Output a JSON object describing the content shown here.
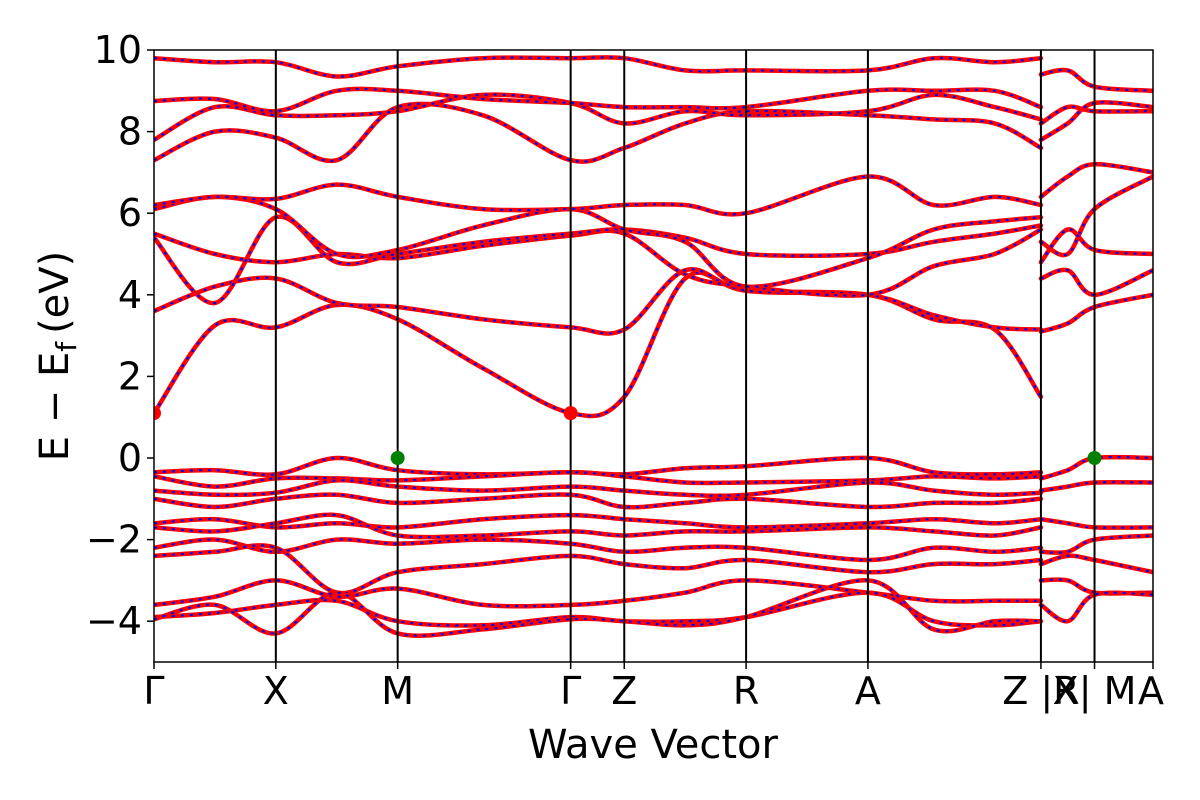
{
  "chart_data": {
    "type": "line",
    "title": "",
    "xlabel": "Wave Vector",
    "ylabel": "E − E",
    "ylabel_subscript": "f",
    "ylabel_unit": "(eV)",
    "ylim": [
      -5,
      10
    ],
    "yticks": [
      -4,
      -2,
      0,
      2,
      4,
      6,
      8,
      10
    ],
    "ytick_labels": [
      "−4",
      "−2",
      "0",
      "2",
      "4",
      "6",
      "8",
      "10"
    ],
    "grid": false,
    "legend": "none",
    "xlim": [
      0,
      8.2
    ],
    "kpath": [
      {
        "label": "Γ",
        "x": 0.0
      },
      {
        "label": "X",
        "x": 1.0
      },
      {
        "label": "M",
        "x": 2.0
      },
      {
        "label": "Γ",
        "x": 3.42
      },
      {
        "label": "Z",
        "x": 3.86
      },
      {
        "label": "R",
        "x": 4.86
      },
      {
        "label": "A",
        "x": 5.86
      },
      {
        "label": "Z |R",
        "x": 7.28
      },
      {
        "label": "X| M",
        "x": 7.72
      },
      {
        "label": "A",
        "x": 8.2
      }
    ],
    "colors": {
      "band_red": "#ff0000",
      "band_blue": "#0000ff",
      "cbm": "#ff0000",
      "vbm": "#008000",
      "axis": "#000000"
    },
    "series": [
      {
        "values": [
          1.1,
          3.25,
          3.2,
          3.75,
          3.4,
          2.2,
          1.1,
          1.5,
          4.4,
          4.1,
          4.0,
          3.4,
          3.15,
          1.5
        ]
      },
      {
        "values": [
          3.6,
          4.2,
          4.4,
          3.8,
          3.7,
          3.4,
          3.2,
          3.15,
          4.6,
          4.1,
          4.0,
          3.5,
          3.2,
          3.15
        ]
      },
      {
        "values": [
          5.5,
          5.0,
          4.8,
          5.0,
          4.9,
          5.2,
          5.45,
          5.5,
          4.5,
          4.2,
          4.0,
          4.7,
          5.0,
          5.6
        ]
      },
      {
        "values": [
          5.4,
          3.8,
          5.9,
          4.8,
          5.0,
          5.3,
          5.5,
          5.6,
          5.4,
          5.0,
          5.0,
          5.3,
          5.5,
          5.7
        ]
      },
      {
        "values": [
          6.1,
          6.4,
          6.1,
          5.0,
          5.1,
          5.7,
          6.1,
          5.6,
          5.3,
          4.2,
          4.9,
          5.6,
          5.8,
          5.9
        ]
      },
      {
        "values": [
          6.2,
          6.4,
          6.35,
          6.7,
          6.4,
          6.1,
          6.1,
          6.2,
          6.2,
          6.0,
          6.9,
          6.2,
          6.4,
          6.2
        ]
      },
      {
        "values": [
          7.3,
          8.0,
          7.85,
          7.3,
          8.6,
          8.4,
          7.3,
          7.6,
          8.2,
          8.5,
          8.4,
          8.3,
          8.2,
          7.6
        ]
      },
      {
        "values": [
          7.8,
          8.6,
          8.4,
          8.4,
          8.5,
          8.9,
          8.7,
          8.2,
          8.5,
          8.4,
          8.5,
          8.9,
          8.6,
          8.3
        ]
      },
      {
        "values": [
          8.75,
          8.8,
          8.5,
          9.0,
          9.0,
          8.8,
          8.7,
          8.6,
          8.6,
          8.6,
          9.0,
          9.0,
          9.0,
          8.6
        ]
      },
      {
        "values": [
          9.8,
          9.7,
          9.7,
          9.35,
          9.6,
          9.8,
          9.8,
          9.8,
          9.5,
          9.5,
          9.5,
          9.8,
          9.7,
          9.8
        ]
      },
      {
        "values": [
          -0.35,
          -0.3,
          -0.4,
          0.0,
          -0.3,
          -0.4,
          -0.35,
          -0.4,
          -0.25,
          -0.2,
          0.0,
          -0.35,
          -0.4,
          -0.35
        ]
      },
      {
        "values": [
          -0.45,
          -0.7,
          -0.5,
          -0.5,
          -0.55,
          -0.45,
          -0.35,
          -0.45,
          -0.6,
          -0.6,
          -0.55,
          -0.45,
          -0.5,
          -0.45
        ]
      },
      {
        "values": [
          -0.8,
          -0.9,
          -0.85,
          -0.55,
          -0.7,
          -0.8,
          -0.7,
          -0.8,
          -0.9,
          -0.9,
          -0.6,
          -0.8,
          -0.9,
          -0.85
        ]
      },
      {
        "values": [
          -1.0,
          -1.2,
          -1.0,
          -0.9,
          -1.1,
          -1.0,
          -0.9,
          -1.2,
          -1.1,
          -1.0,
          -1.2,
          -1.1,
          -1.1,
          -1.0
        ]
      },
      {
        "values": [
          -1.6,
          -1.5,
          -1.7,
          -1.6,
          -1.7,
          -1.5,
          -1.4,
          -1.5,
          -1.6,
          -1.7,
          -1.6,
          -1.5,
          -1.6,
          -1.5
        ]
      },
      {
        "values": [
          -1.7,
          -1.8,
          -1.6,
          -1.4,
          -1.9,
          -1.9,
          -1.8,
          -1.9,
          -1.8,
          -1.8,
          -1.7,
          -1.8,
          -1.9,
          -1.7
        ]
      },
      {
        "values": [
          -2.2,
          -2.0,
          -2.3,
          -2.0,
          -2.1,
          -2.0,
          -2.1,
          -2.3,
          -2.2,
          -2.2,
          -2.5,
          -2.2,
          -2.3,
          -2.2
        ]
      },
      {
        "values": [
          -2.4,
          -2.3,
          -2.2,
          -3.3,
          -2.8,
          -2.6,
          -2.4,
          -2.6,
          -2.7,
          -2.5,
          -2.8,
          -2.6,
          -2.6,
          -2.5
        ]
      },
      {
        "values": [
          -3.6,
          -3.4,
          -3.0,
          -3.4,
          -3.2,
          -3.6,
          -3.6,
          -3.5,
          -3.3,
          -3.0,
          -3.3,
          -3.5,
          -3.5,
          -3.5
        ]
      },
      {
        "values": [
          -3.9,
          -3.8,
          -3.6,
          -3.5,
          -4.0,
          -4.1,
          -3.9,
          -4.0,
          -4.0,
          -3.9,
          -3.3,
          -4.0,
          -4.1,
          -4.0
        ]
      },
      {
        "values": [
          -3.95,
          -3.6,
          -4.3,
          -3.3,
          -4.3,
          -4.2,
          -3.95,
          -4.0,
          -4.1,
          -3.9,
          -3.0,
          -4.2,
          -4.0,
          -4.0
        ]
      }
    ],
    "series_tail": [
      {
        "values": [
          6.4,
          6.9,
          7.2,
          7.0
        ]
      },
      {
        "values": [
          5.3,
          5.0,
          6.1,
          6.9
        ]
      },
      {
        "values": [
          4.8,
          5.6,
          5.1,
          5.0
        ]
      },
      {
        "values": [
          4.4,
          4.6,
          4.0,
          4.6
        ]
      },
      {
        "values": [
          3.1,
          3.3,
          3.7,
          4.0
        ]
      },
      {
        "values": [
          9.4,
          9.5,
          9.1,
          9.0
        ]
      },
      {
        "values": [
          8.2,
          8.6,
          8.5,
          8.5
        ]
      },
      {
        "values": [
          7.8,
          8.2,
          8.7,
          8.6
        ]
      },
      {
        "values": [
          -0.5,
          -0.3,
          0.0,
          0.0
        ]
      },
      {
        "values": [
          -0.8,
          -0.7,
          -0.6,
          -0.6
        ]
      },
      {
        "values": [
          -1.5,
          -1.6,
          -1.7,
          -1.7
        ]
      },
      {
        "values": [
          -2.3,
          -2.3,
          -2.0,
          -1.9
        ]
      },
      {
        "values": [
          -2.6,
          -2.4,
          -2.5,
          -2.8
        ]
      },
      {
        "values": [
          -3.0,
          -3.0,
          -3.3,
          -3.3
        ]
      },
      {
        "values": [
          -3.6,
          -4.0,
          -3.35,
          -3.35
        ]
      }
    ],
    "markers": [
      {
        "type": "cbm",
        "x": 0.0,
        "y": 1.1
      },
      {
        "type": "cbm",
        "x": 3.42,
        "y": 1.1
      },
      {
        "type": "vbm",
        "x": 2.0,
        "y": 0.0
      },
      {
        "type": "vbm",
        "x": 7.72,
        "y": 0.0
      }
    ]
  }
}
